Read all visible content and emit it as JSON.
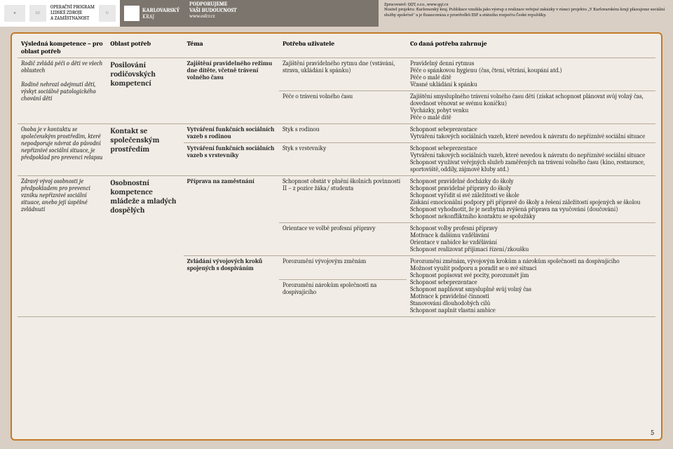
{
  "header": {
    "logos": {
      "program": [
        "OPERAČNÍ PROGRAM",
        "LIDSKÉ ZDROJE",
        "A ZAMĚSTNANOST"
      ],
      "region1": "KARLOVARSKÝ",
      "region2": "KRAJ",
      "support1": "PODPORUJEME",
      "support2": "VAŠI BUDOUCNOST",
      "support_url": "www.esfcr.cz"
    },
    "meta_line1": "Zpracovatel: QQT, s.r.o., www.qqt.cz",
    "meta_line2": "Nositel projektu: Karlovarský kraj. Publikace vznikla jako výstup z realizace veřejné zakázky v rámci projektu „V Karlovarském kraji plánujeme sociální služby společně\" a je financována z prostředků ESF a státního rozpočtu České republiky."
  },
  "table": {
    "head": {
      "c1": "Výsledná kompetence – pro oblast potřeb",
      "c2": "Oblast potřeb",
      "c3": "Téma",
      "c4": "Potřeba uživatele",
      "c5": "Co daná potřeba zahrnuje"
    },
    "r1": {
      "desc": "Rodič zvládá péči o děti ve všech oblastech\n\nRodině nehrozí odejmutí dětí, výskyt sociálně patologického chování dětí",
      "ob": "Posilování rodičovských kompetencí",
      "tema": "Zajištění pravidelného režimu dne dítěte, včetně trávení volného času",
      "pot_a": "Zajištění pravidelného rytmu dne (vstávání, strava, ukládání k spánku)",
      "zah_a": "Pravidelný denní rytmus\nPéče o spánkovou hygienu (čas, čtení, větrání, koupání atd.)\nPéče o malé dítě\nVčasné ukládání k spánku",
      "pot_b": "Péče o trávení volného času",
      "zah_b": "Zajištění smysluplného trávení volného času dětí (získat schopnost plánovat svůj volný čas, dovednost věnovat se svému koníčku)\nVycházky, pobyt venku\nPéče o malé dítě"
    },
    "r2": {
      "desc": "Osoba je v kontaktu se společenským prostředím, které nepodporuje návrat do původní nepříznivé sociální situace, je předpoklad pro prevenci relapsu",
      "ob": "Kontakt se společenským prostředím",
      "tema_a": "Vytváření funkčních sociálních vazeb s rodinou",
      "pot_a": "Styk s rodinou",
      "zah_a": "Schopnost sebeprezentace\nVytváření takových sociálních vazeb, které nevedou k návratu do nepříznivé sociální situace",
      "tema_b": "Vytváření funkčních sociálních vazeb s vrstevníky",
      "pot_b": "Styk s vrstevníky",
      "zah_b": "Schopnost sebeprezentace\nVytváření takových sociálních vazeb, které nevedou k návratu do nepříznivé sociální situace\nSchopnost využívat veřejných služeb zaměřených na trávení volného času (kino, restaurace, sportoviště, oddíly, zájmové kluby atd.)"
    },
    "r3": {
      "desc": "Zdravý vývoj osobnosti je předpokladem pro prevenci vzniku nepříznivé sociální situace, anebo její úspěšné zvládnutí",
      "ob": "Osobnostní kompetence mládeže a mladých dospělých",
      "tema_a": "Příprava na zaměstnání",
      "pot_a": "Schopnost obstát v plnění školních povinností II – z pozice žáka/ studenta",
      "zah_a": "Schopnost pravidelné docházky do školy\nSchopnost pravidelné přípravy do školy\nSchopnost vyřídit si své záležitosti ve škole\nZískání emocionální podpory při přípravě do školy a řešení záležitostí spojených se školou\nSchopnost vyhodnotit, že je nezbytná zvýšená příprava na vyučování (doučování)\nSchopnost nekonfliktního kontaktu se spolužáky",
      "pot_b": "Orientace ve volbě profesní přípravy",
      "zah_b": "Schopnost volby profesní přípravy\nMotivace k dalšímu vzdělávání\nOrientace v nabídce ke vzdělávání\nSchopnost realizovat přijímací řízení/zkoušku",
      "tema_c": "Zvládání vývojových kroků spojených s dospíváním",
      "pot_c": "Porozumění vývojovým změnám",
      "zah_c": "Porozumění změnám, vývojovým krokům a nárokům společnosti na dospívajícího\nMožnost využít podporu a poradit se o své situaci\nSchopnost popisovat své pocity, porozumět jim\nSchopnost sebeprezentace\nSchopnost naplňovat smysluplně svůj volný čas\nMotivace k pravidelné činnosti\nStanovování dlouhodobých cílů\nSchopnost naplnit vlastní ambice",
      "pot_d": "Porozumění nárokům společnosti na dospívajícího"
    }
  },
  "page_number": "5",
  "colors": {
    "frame_border": "#c27a27",
    "page_bg": "#f1ece5",
    "body_bg": "#d9cfc5",
    "rule": "#b7ab9d"
  }
}
